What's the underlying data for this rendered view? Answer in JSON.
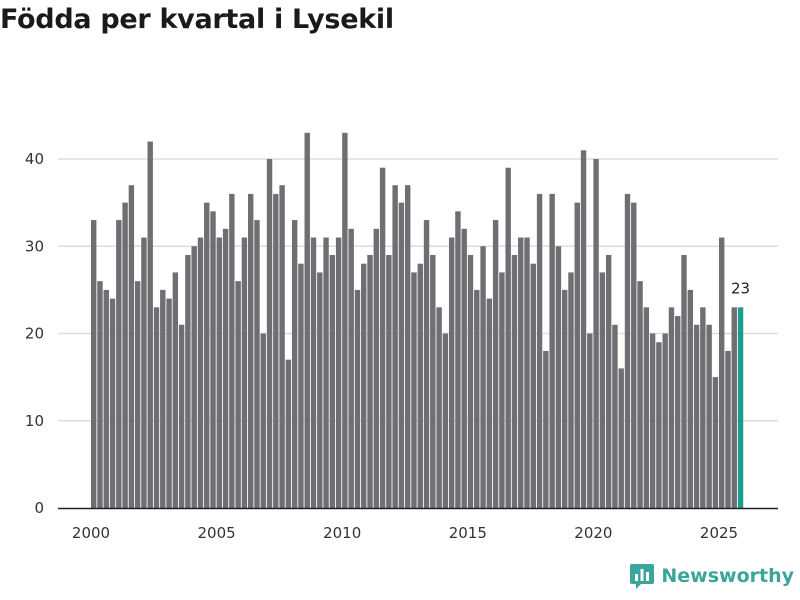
{
  "chart_data": {
    "type": "bar",
    "title": "Födda per kvartal i Lysekil",
    "xlabel": "",
    "ylabel": "",
    "ylim": [
      0,
      45
    ],
    "yticks": [
      0,
      10,
      20,
      30,
      40
    ],
    "xticks": [
      2000,
      2005,
      2010,
      2015,
      2020,
      2025
    ],
    "x_start": "2000 Q1",
    "values": [
      33,
      26,
      25,
      24,
      33,
      35,
      37,
      26,
      31,
      42,
      23,
      25,
      24,
      27,
      21,
      29,
      30,
      31,
      35,
      34,
      31,
      32,
      36,
      26,
      31,
      36,
      33,
      20,
      40,
      36,
      37,
      17,
      33,
      28,
      43,
      31,
      27,
      31,
      29,
      31,
      43,
      32,
      25,
      28,
      29,
      32,
      39,
      29,
      37,
      35,
      37,
      27,
      28,
      33,
      29,
      23,
      20,
      31,
      34,
      32,
      29,
      25,
      30,
      24,
      33,
      27,
      39,
      29,
      31,
      31,
      28,
      36,
      18,
      36,
      30,
      25,
      27,
      35,
      41,
      20,
      40,
      27,
      29,
      21,
      16,
      36,
      35,
      26,
      23,
      20,
      19,
      20,
      23,
      22,
      29,
      25,
      21,
      23,
      21,
      15,
      31,
      18,
      23,
      23
    ],
    "highlight_index": 103,
    "highlight_label": "23",
    "colors": {
      "bar": "#6e6e73",
      "highlight": "#1a9e8f",
      "grid": "#dddddd",
      "axis": "#222222"
    },
    "grid": true
  },
  "brand": {
    "name": "Newsworthy",
    "icon": "newsworthy-logo-icon",
    "color": "#3aa59a"
  }
}
